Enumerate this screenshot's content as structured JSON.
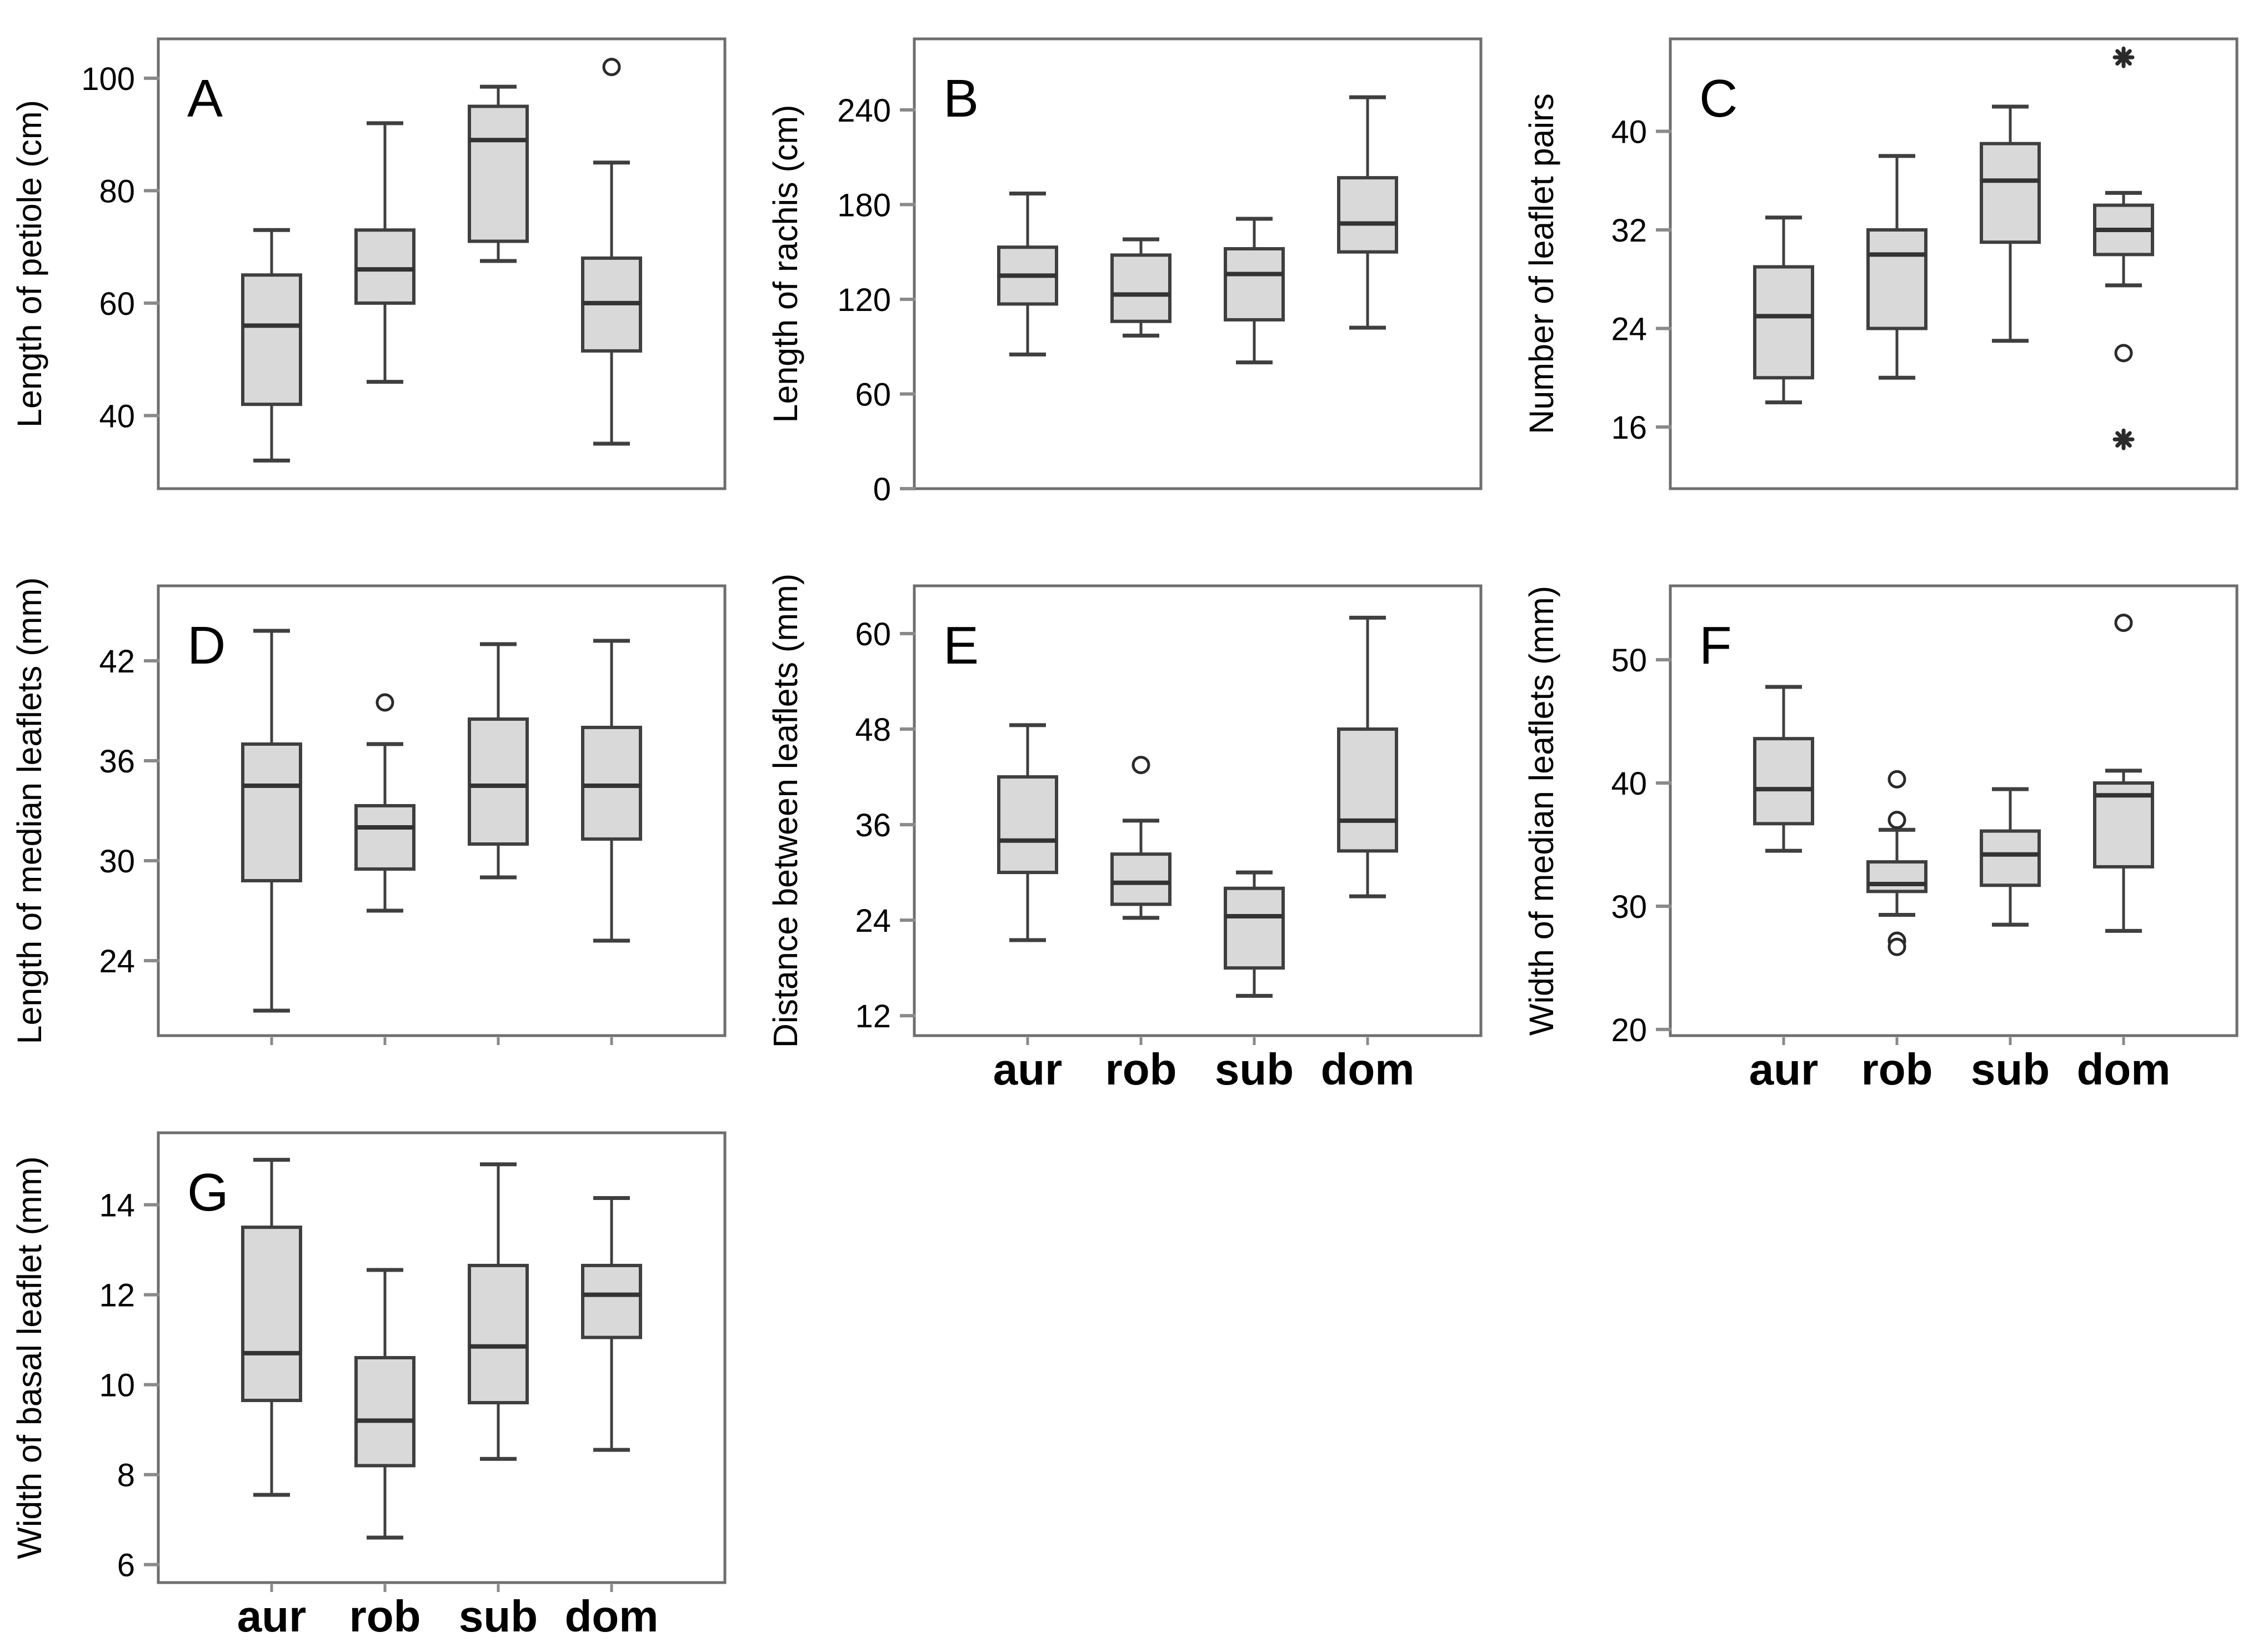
{
  "figure": {
    "background": "#ffffff",
    "colors": {
      "box_fill": "#d9d9d9",
      "box_stroke": "#3f3f3f",
      "median_stroke": "#333333",
      "whisker_stroke": "#3f3f3f",
      "frame_stroke": "#6e6e6e",
      "tick_stroke": "#8a8a8a",
      "outlier_stroke": "#2a2a2a",
      "text": "#000000"
    },
    "x_axis_labels": [
      "aur",
      "rob",
      "sub",
      "dom"
    ]
  },
  "chart_data": [
    {
      "panel": "A",
      "type": "box",
      "ylabel": "Length of petiole (cm)",
      "categories": [
        "aur",
        "rob",
        "sub",
        "dom"
      ],
      "ylim": [
        27,
        107
      ],
      "yticks": [
        40,
        60,
        80,
        100
      ],
      "show_x_labels": false,
      "show_x_ticks": false,
      "boxes": [
        {
          "group": "aur",
          "low": 32,
          "q1": 42,
          "median": 56,
          "q3": 65,
          "high": 73,
          "outliers": []
        },
        {
          "group": "rob",
          "low": 46,
          "q1": 60,
          "median": 66,
          "q3": 73,
          "high": 92,
          "outliers": []
        },
        {
          "group": "sub",
          "low": 67.5,
          "q1": 71,
          "median": 89,
          "q3": 95,
          "high": 98.5,
          "outliers": []
        },
        {
          "group": "dom",
          "low": 35,
          "q1": 51.5,
          "median": 60,
          "q3": 68,
          "high": 85,
          "outliers": [
            {
              "value": 102,
              "marker": "circle"
            }
          ]
        }
      ]
    },
    {
      "panel": "B",
      "type": "box",
      "ylabel": "Length of rachis (cm)",
      "categories": [
        "aur",
        "rob",
        "sub",
        "dom"
      ],
      "ylim": [
        0,
        285
      ],
      "yticks": [
        0,
        60,
        120,
        180,
        240
      ],
      "show_x_labels": false,
      "show_x_ticks": false,
      "boxes": [
        {
          "group": "aur",
          "low": 85,
          "q1": 117,
          "median": 135,
          "q3": 153,
          "high": 187,
          "outliers": []
        },
        {
          "group": "rob",
          "low": 97,
          "q1": 106,
          "median": 123,
          "q3": 148,
          "high": 158,
          "outliers": []
        },
        {
          "group": "sub",
          "low": 80,
          "q1": 107,
          "median": 136,
          "q3": 152,
          "high": 171,
          "outliers": []
        },
        {
          "group": "dom",
          "low": 102,
          "q1": 150,
          "median": 168,
          "q3": 197,
          "high": 248,
          "outliers": []
        }
      ]
    },
    {
      "panel": "C",
      "type": "box",
      "ylabel": "Number of leaflet pairs",
      "categories": [
        "aur",
        "rob",
        "sub",
        "dom"
      ],
      "ylim": [
        11,
        47.5
      ],
      "yticks": [
        16,
        24,
        32,
        40
      ],
      "show_x_labels": false,
      "show_x_ticks": false,
      "boxes": [
        {
          "group": "aur",
          "low": 18,
          "q1": 20,
          "median": 25,
          "q3": 29,
          "high": 33,
          "outliers": []
        },
        {
          "group": "rob",
          "low": 20,
          "q1": 24,
          "median": 30,
          "q3": 32,
          "high": 38,
          "outliers": []
        },
        {
          "group": "sub",
          "low": 23,
          "q1": 31,
          "median": 36,
          "q3": 39,
          "high": 42,
          "outliers": []
        },
        {
          "group": "dom",
          "low": 27.5,
          "q1": 30,
          "median": 32,
          "q3": 34,
          "high": 35,
          "outliers": [
            {
              "value": 46,
              "marker": "star"
            },
            {
              "value": 22,
              "marker": "circle"
            },
            {
              "value": 15,
              "marker": "star"
            }
          ]
        }
      ]
    },
    {
      "panel": "D",
      "type": "box",
      "ylabel": "Length of median leaflets (mm)",
      "categories": [
        "aur",
        "rob",
        "sub",
        "dom"
      ],
      "ylim": [
        19.5,
        46.5
      ],
      "yticks": [
        24,
        30,
        36,
        42
      ],
      "show_x_labels": false,
      "show_x_ticks": true,
      "boxes": [
        {
          "group": "aur",
          "low": 21,
          "q1": 28.8,
          "median": 34.5,
          "q3": 37,
          "high": 43.8,
          "outliers": []
        },
        {
          "group": "rob",
          "low": 27,
          "q1": 29.5,
          "median": 32,
          "q3": 33.3,
          "high": 37,
          "outliers": [
            {
              "value": 39.5,
              "marker": "circle"
            }
          ]
        },
        {
          "group": "sub",
          "low": 29,
          "q1": 31,
          "median": 34.5,
          "q3": 38.5,
          "high": 43,
          "outliers": []
        },
        {
          "group": "dom",
          "low": 25.2,
          "q1": 31.3,
          "median": 34.5,
          "q3": 38,
          "high": 43.2,
          "outliers": []
        }
      ]
    },
    {
      "panel": "E",
      "type": "box",
      "ylabel": "Distance between leaflets (mm)",
      "categories": [
        "aur",
        "rob",
        "sub",
        "dom"
      ],
      "ylim": [
        9.5,
        66
      ],
      "yticks": [
        12,
        24,
        36,
        48,
        60
      ],
      "show_x_labels": true,
      "show_x_ticks": true,
      "boxes": [
        {
          "group": "aur",
          "low": 21.5,
          "q1": 30,
          "median": 34,
          "q3": 42,
          "high": 48.5,
          "outliers": []
        },
        {
          "group": "rob",
          "low": 24.3,
          "q1": 26,
          "median": 28.7,
          "q3": 32.3,
          "high": 36.5,
          "outliers": [
            {
              "value": 43.5,
              "marker": "circle"
            }
          ]
        },
        {
          "group": "sub",
          "low": 14.5,
          "q1": 18,
          "median": 24.5,
          "q3": 28,
          "high": 30,
          "outliers": []
        },
        {
          "group": "dom",
          "low": 27,
          "q1": 32.7,
          "median": 36.5,
          "q3": 48,
          "high": 62,
          "outliers": []
        }
      ]
    },
    {
      "panel": "F",
      "type": "box",
      "ylabel": "Width of median leaflets (mm)",
      "categories": [
        "aur",
        "rob",
        "sub",
        "dom"
      ],
      "ylim": [
        19.5,
        56
      ],
      "yticks": [
        20,
        30,
        40,
        50
      ],
      "show_x_labels": true,
      "show_x_ticks": true,
      "boxes": [
        {
          "group": "aur",
          "low": 34.5,
          "q1": 36.7,
          "median": 39.5,
          "q3": 43.6,
          "high": 47.8,
          "outliers": []
        },
        {
          "group": "rob",
          "low": 29.3,
          "q1": 31.2,
          "median": 31.8,
          "q3": 33.6,
          "high": 36.2,
          "outliers": [
            {
              "value": 40.3,
              "marker": "circle"
            },
            {
              "value": 37,
              "marker": "circle"
            },
            {
              "value": 27.2,
              "marker": "circle"
            },
            {
              "value": 26.7,
              "marker": "circle"
            }
          ]
        },
        {
          "group": "sub",
          "low": 28.5,
          "q1": 31.7,
          "median": 34.2,
          "q3": 36.1,
          "high": 39.5,
          "outliers": []
        },
        {
          "group": "dom",
          "low": 28,
          "q1": 33.2,
          "median": 39,
          "q3": 40,
          "high": 41,
          "outliers": [
            {
              "value": 53,
              "marker": "circle"
            }
          ]
        }
      ]
    },
    {
      "panel": "G",
      "type": "box",
      "ylabel": "Width of basal leaflet (mm)",
      "categories": [
        "aur",
        "rob",
        "sub",
        "dom"
      ],
      "ylim": [
        5.6,
        15.6
      ],
      "yticks": [
        6,
        8,
        10,
        12,
        14
      ],
      "show_x_labels": true,
      "show_x_ticks": true,
      "boxes": [
        {
          "group": "aur",
          "low": 7.55,
          "q1": 9.65,
          "median": 10.7,
          "q3": 13.5,
          "high": 15.0,
          "outliers": []
        },
        {
          "group": "rob",
          "low": 6.6,
          "q1": 8.2,
          "median": 9.2,
          "q3": 10.6,
          "high": 12.55,
          "outliers": []
        },
        {
          "group": "sub",
          "low": 8.35,
          "q1": 9.6,
          "median": 10.85,
          "q3": 12.65,
          "high": 14.9,
          "outliers": []
        },
        {
          "group": "dom",
          "low": 8.55,
          "q1": 11.05,
          "median": 12.0,
          "q3": 12.65,
          "high": 14.15,
          "outliers": []
        }
      ]
    }
  ],
  "layout_cells": [
    "A",
    "B",
    "C",
    "D",
    "E",
    "F",
    "G",
    null,
    null
  ]
}
